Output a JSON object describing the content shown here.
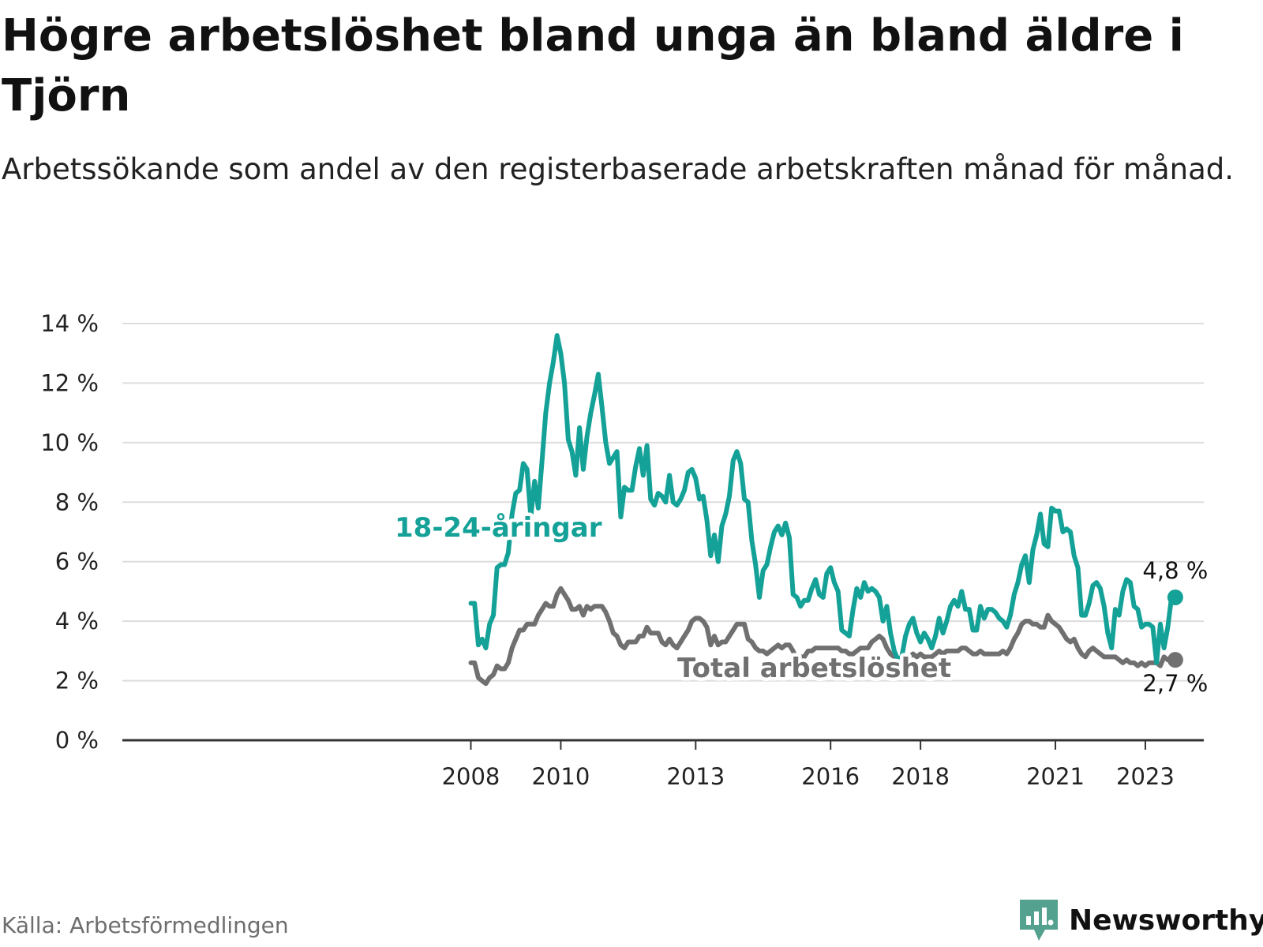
{
  "title": "Högre arbetslöshet bland unga än bland äldre i Tjörn",
  "subtitle": "Arbetssökande som andel av den registerbaserade arbetskraften månad för månad.",
  "source": "Källa: Arbetsförmedlingen",
  "brand": {
    "name": "Newsworthy",
    "icon": "newsworthy-logo-icon",
    "color": "#53a18e"
  },
  "colors": {
    "youth": "#14a197",
    "total": "#707070",
    "grid": "#dddddd",
    "axis": "#333333"
  },
  "chart_data": {
    "type": "line",
    "x_unit": "year (decimal, monthly points)",
    "x_start": 2008.0,
    "x_step": 0.08333,
    "xlim": [
      2000.25,
      2024.3
    ],
    "ylim": [
      0,
      14
    ],
    "y_ticks": [
      0,
      2,
      4,
      6,
      8,
      10,
      12,
      14
    ],
    "y_tick_labels": [
      "0 %",
      "2 %",
      "4 %",
      "6 %",
      "8 %",
      "10 %",
      "12 %",
      "14 %"
    ],
    "x_ticks": [
      2008,
      2010,
      2013,
      2016,
      2018,
      2021,
      2023
    ],
    "x_tick_labels": [
      "2008",
      "2010",
      "2013",
      "2016",
      "2018",
      "2021",
      "2023"
    ],
    "grid": true,
    "series": [
      {
        "name": "18-24-åringar",
        "label": "18-24-åringar",
        "end_label": "4,8 %",
        "values": [
          4.6,
          4.6,
          3.2,
          3.4,
          3.1,
          3.9,
          4.2,
          5.8,
          5.9,
          5.9,
          6.3,
          7.6,
          8.3,
          8.4,
          9.3,
          9.1,
          7.5,
          8.7,
          7.8,
          9.4,
          11.0,
          12.0,
          12.7,
          13.6,
          13.0,
          12.0,
          10.1,
          9.7,
          8.9,
          10.5,
          9.1,
          10.2,
          11.0,
          11.6,
          12.3,
          11.2,
          10.0,
          9.3,
          9.5,
          9.7,
          7.5,
          8.5,
          8.4,
          8.4,
          9.2,
          9.8,
          8.9,
          9.9,
          8.1,
          7.9,
          8.3,
          8.2,
          8.0,
          8.9,
          8.0,
          7.9,
          8.1,
          8.4,
          9.0,
          9.1,
          8.8,
          8.1,
          8.2,
          7.4,
          6.2,
          6.9,
          6.0,
          7.2,
          7.6,
          8.2,
          9.4,
          9.7,
          9.3,
          8.1,
          8.0,
          6.7,
          5.9,
          4.8,
          5.7,
          5.9,
          6.5,
          7.0,
          7.2,
          6.9,
          7.3,
          6.8,
          4.9,
          4.8,
          4.5,
          4.7,
          4.7,
          5.1,
          5.4,
          4.9,
          4.8,
          5.6,
          5.8,
          5.3,
          5.0,
          3.7,
          3.6,
          3.5,
          4.4,
          5.1,
          4.8,
          5.3,
          5.0,
          5.1,
          5.0,
          4.8,
          4.0,
          4.5,
          3.6,
          3.0,
          2.7,
          2.8,
          3.5,
          3.9,
          4.1,
          3.6,
          3.3,
          3.6,
          3.4,
          3.1,
          3.5,
          4.1,
          3.6,
          4.0,
          4.5,
          4.7,
          4.5,
          5.0,
          4.4,
          4.4,
          3.7,
          3.7,
          4.5,
          4.1,
          4.4,
          4.4,
          4.3,
          4.1,
          4.0,
          3.8,
          4.2,
          4.9,
          5.3,
          5.9,
          6.2,
          5.3,
          6.4,
          6.9,
          7.6,
          6.6,
          6.5,
          7.8,
          7.7,
          7.7,
          7.0,
          7.1,
          7.0,
          6.2,
          5.8,
          4.2,
          4.2,
          4.6,
          5.2,
          5.3,
          5.1,
          4.5,
          3.6,
          3.1,
          4.4,
          4.2,
          5.0,
          5.4,
          5.3,
          4.5,
          4.4,
          3.8,
          3.9,
          3.9,
          3.8,
          2.6,
          3.9,
          3.1,
          3.8,
          4.8,
          4.8
        ]
      },
      {
        "name": "Total arbetslöshet",
        "label": "Total arbetslöshet",
        "end_label": "2,7 %",
        "values": [
          2.6,
          2.6,
          2.1,
          2.0,
          1.9,
          2.1,
          2.2,
          2.5,
          2.4,
          2.4,
          2.6,
          3.1,
          3.4,
          3.7,
          3.7,
          3.9,
          3.9,
          3.9,
          4.2,
          4.4,
          4.6,
          4.5,
          4.5,
          4.9,
          5.1,
          4.9,
          4.7,
          4.4,
          4.4,
          4.5,
          4.2,
          4.5,
          4.4,
          4.5,
          4.5,
          4.5,
          4.3,
          4.0,
          3.6,
          3.5,
          3.2,
          3.1,
          3.3,
          3.3,
          3.3,
          3.5,
          3.5,
          3.8,
          3.6,
          3.6,
          3.6,
          3.3,
          3.2,
          3.4,
          3.2,
          3.1,
          3.3,
          3.5,
          3.7,
          4.0,
          4.1,
          4.1,
          4.0,
          3.8,
          3.2,
          3.5,
          3.2,
          3.3,
          3.3,
          3.5,
          3.7,
          3.9,
          3.9,
          3.9,
          3.4,
          3.3,
          3.1,
          3.0,
          3.0,
          2.9,
          3.0,
          3.1,
          3.2,
          3.1,
          3.2,
          3.2,
          3.0,
          2.7,
          2.8,
          2.8,
          3.0,
          3.0,
          3.1,
          3.1,
          3.1,
          3.1,
          3.1,
          3.1,
          3.1,
          3.0,
          3.0,
          2.9,
          2.9,
          3.0,
          3.1,
          3.1,
          3.1,
          3.3,
          3.4,
          3.5,
          3.4,
          3.1,
          2.9,
          2.8,
          2.7,
          2.8,
          2.8,
          2.8,
          2.9,
          2.8,
          2.9,
          2.8,
          2.8,
          2.8,
          2.9,
          3.0,
          2.9,
          3.0,
          3.0,
          3.0,
          3.0,
          3.1,
          3.1,
          3.0,
          2.9,
          2.9,
          3.0,
          2.9,
          2.9,
          2.9,
          2.9,
          2.9,
          3.0,
          2.9,
          3.1,
          3.4,
          3.6,
          3.9,
          4.0,
          4.0,
          3.9,
          3.9,
          3.8,
          3.8,
          4.2,
          4.0,
          3.9,
          3.8,
          3.6,
          3.4,
          3.3,
          3.4,
          3.1,
          2.9,
          2.8,
          3.0,
          3.1,
          3.0,
          2.9,
          2.8,
          2.8,
          2.8,
          2.8,
          2.7,
          2.6,
          2.7,
          2.6,
          2.6,
          2.5,
          2.6,
          2.5,
          2.6,
          2.6,
          2.6,
          2.5,
          2.8,
          2.7,
          2.7,
          2.7
        ]
      }
    ],
    "annotations": [
      "18-24-åringar",
      "Total arbetslöshet",
      "4,8 %",
      "2,7 %"
    ]
  }
}
